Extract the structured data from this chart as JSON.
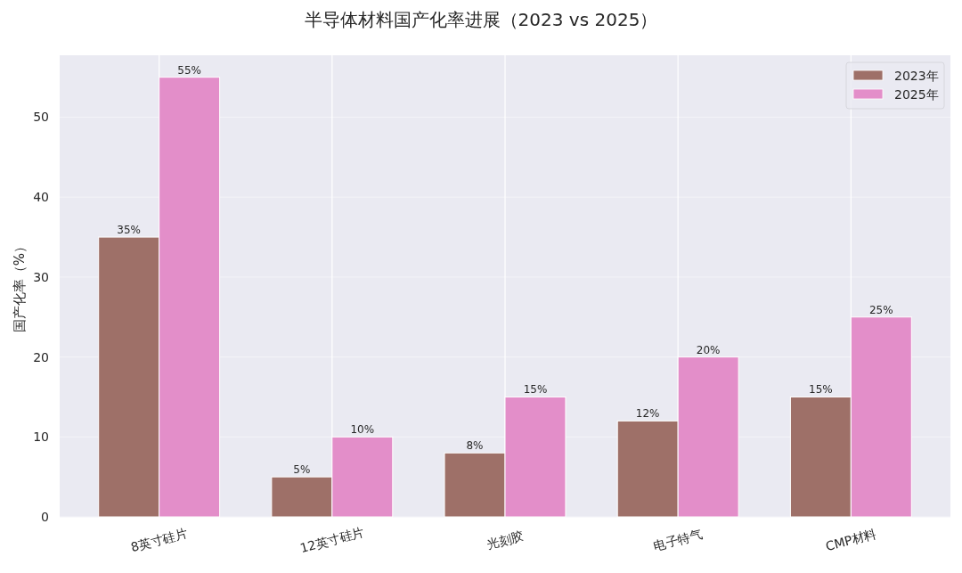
{
  "chart_data": {
    "type": "bar",
    "title": "半导体材料国产化率进展（2023 vs 2025）",
    "ylabel": "国产化率（%）",
    "categories": [
      "8英寸硅片",
      "12英寸硅片",
      "光刻胶",
      "电子特气",
      "CMP材料"
    ],
    "series": [
      {
        "name": "2023年",
        "color": "#9e7068",
        "values": [
          35,
          5,
          8,
          12,
          15
        ],
        "value_labels": [
          "35%",
          "5%",
          "8%",
          "12%",
          "15%"
        ]
      },
      {
        "name": "2025年",
        "color": "#e38ec9",
        "values": [
          55,
          10,
          15,
          20,
          25
        ],
        "value_labels": [
          "55%",
          "10%",
          "15%",
          "20%",
          "25%"
        ]
      }
    ],
    "ylim": [
      0,
      57.75
    ],
    "yticks": [
      0,
      10,
      20,
      30,
      40,
      50
    ],
    "grid": true,
    "legend": "top right"
  }
}
